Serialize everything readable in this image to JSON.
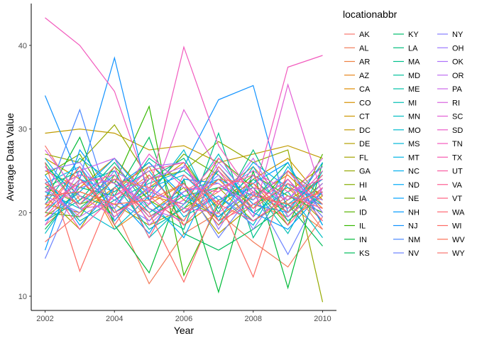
{
  "chart_data": {
    "type": "line",
    "xlabel": "Year",
    "ylabel": "Average Data Value",
    "xlim": [
      2001.6,
      2010.4
    ],
    "ylim": [
      8.3,
      45.0
    ],
    "xticks": [
      "2002",
      "2004",
      "2006",
      "2008",
      "2010"
    ],
    "yticks": [
      "10",
      "20",
      "30",
      "40"
    ],
    "grid": false,
    "legend_title": "locationabbr",
    "legend_placement": "right",
    "x": [
      2002,
      2003,
      2004,
      2005,
      2006,
      2007,
      2008,
      2009,
      2010
    ],
    "series": [
      {
        "name": "AK",
        "color": "#F8766D",
        "values": [
          28.0,
          21.5,
          24.0,
          19.0,
          22.5,
          25.0,
          21.0,
          19.5,
          23.0
        ]
      },
      {
        "name": "AL",
        "color": "#F37B59",
        "values": [
          18.5,
          22.0,
          20.5,
          11.5,
          17.5,
          20.0,
          16.5,
          13.5,
          19.5
        ]
      },
      {
        "name": "AR",
        "color": "#ED8141",
        "values": [
          23.5,
          19.0,
          21.5,
          24.5,
          20.0,
          22.5,
          25.5,
          21.0,
          18.0
        ]
      },
      {
        "name": "AZ",
        "color": "#E7861B",
        "values": [
          20.5,
          25.5,
          18.0,
          21.0,
          23.5,
          19.0,
          22.0,
          24.5,
          20.5
        ]
      },
      {
        "name": "CA",
        "color": "#DE8C00",
        "values": [
          25.0,
          23.0,
          26.5,
          22.0,
          21.0,
          24.0,
          20.0,
          22.5,
          25.5
        ]
      },
      {
        "name": "CO",
        "color": "#D58F00",
        "values": [
          21.0,
          20.0,
          23.0,
          25.5,
          18.5,
          21.5,
          23.5,
          19.0,
          22.0
        ]
      },
      {
        "name": "CT",
        "color": "#CC9600",
        "values": [
          26.5,
          24.0,
          19.5,
          23.0,
          26.0,
          20.5,
          24.0,
          26.5,
          21.5
        ]
      },
      {
        "name": "DC",
        "color": "#C09B00",
        "values": [
          29.5,
          30.0,
          29.5,
          27.5,
          28.0,
          26.0,
          27.0,
          28.0,
          26.5
        ]
      },
      {
        "name": "DE",
        "color": "#B39F00",
        "values": [
          22.0,
          18.0,
          24.5,
          20.0,
          23.0,
          17.5,
          21.0,
          23.0,
          19.0
        ]
      },
      {
        "name": "FL",
        "color": "#A5A400",
        "values": [
          19.5,
          22.5,
          21.0,
          18.5,
          20.5,
          23.0,
          19.0,
          21.5,
          24.0
        ]
      },
      {
        "name": "GA",
        "color": "#95A900",
        "values": [
          27.0,
          26.0,
          30.5,
          24.0,
          25.0,
          28.5,
          26.0,
          27.5,
          9.3
        ]
      },
      {
        "name": "HI",
        "color": "#85AD00",
        "values": [
          23.0,
          21.0,
          22.5,
          26.0,
          21.5,
          19.5,
          22.5,
          20.0,
          23.5
        ]
      },
      {
        "name": "IA",
        "color": "#70B000",
        "values": [
          24.5,
          27.0,
          20.0,
          22.5,
          27.0,
          24.5,
          20.5,
          25.0,
          22.0
        ]
      },
      {
        "name": "ID",
        "color": "#58B400",
        "values": [
          20.0,
          19.5,
          25.5,
          21.5,
          19.0,
          26.5,
          23.0,
          18.5,
          27.0
        ]
      },
      {
        "name": "IL",
        "color": "#36B800",
        "values": [
          22.5,
          24.5,
          23.5,
          32.7,
          12.5,
          21.0,
          24.5,
          22.0,
          20.0
        ]
      },
      {
        "name": "IN",
        "color": "#00BA38",
        "values": [
          21.5,
          29.0,
          18.5,
          12.8,
          24.0,
          10.5,
          25.0,
          11.0,
          26.0
        ]
      },
      {
        "name": "KS",
        "color": "#00BC59",
        "values": [
          18.0,
          23.0,
          22.0,
          29.0,
          17.5,
          15.5,
          18.0,
          21.0,
          16.0
        ]
      },
      {
        "name": "KY",
        "color": "#00BE6C",
        "values": [
          26.0,
          20.5,
          24.0,
          19.5,
          22.0,
          23.0,
          21.5,
          26.0,
          18.5
        ]
      },
      {
        "name": "LA",
        "color": "#00BF7D",
        "values": [
          23.0,
          25.0,
          19.0,
          24.0,
          26.5,
          20.0,
          27.5,
          19.5,
          23.5
        ]
      },
      {
        "name": "MA",
        "color": "#00C08B",
        "values": [
          19.0,
          21.5,
          26.0,
          20.5,
          18.0,
          29.5,
          17.0,
          23.5,
          21.0
        ]
      },
      {
        "name": "MD",
        "color": "#00C19A",
        "values": [
          25.5,
          22.0,
          20.5,
          26.5,
          23.5,
          18.5,
          24.0,
          20.5,
          24.5
        ]
      },
      {
        "name": "ME",
        "color": "#00C0A7",
        "values": [
          21.0,
          26.5,
          23.5,
          18.0,
          20.5,
          25.0,
          19.5,
          24.0,
          19.5
        ]
      },
      {
        "name": "MI",
        "color": "#00BFB4",
        "values": [
          24.0,
          19.0,
          21.5,
          23.5,
          25.0,
          21.5,
          23.0,
          17.5,
          25.0
        ]
      },
      {
        "name": "MN",
        "color": "#00BDC2",
        "values": [
          17.5,
          23.5,
          25.0,
          17.0,
          21.0,
          27.0,
          20.0,
          22.5,
          17.0
        ]
      },
      {
        "name": "MO",
        "color": "#00BBCE",
        "values": [
          22.5,
          20.5,
          18.0,
          22.0,
          27.5,
          19.0,
          25.5,
          19.0,
          22.5
        ]
      },
      {
        "name": "MS",
        "color": "#00B8D9",
        "values": [
          20.0,
          24.0,
          22.5,
          25.0,
          19.5,
          22.0,
          18.5,
          25.5,
          20.0
        ]
      },
      {
        "name": "MT",
        "color": "#00B4E4",
        "values": [
          26.5,
          21.0,
          24.5,
          20.0,
          22.5,
          24.0,
          22.0,
          21.0,
          24.0
        ]
      },
      {
        "name": "NC",
        "color": "#00AFEE",
        "values": [
          23.5,
          25.5,
          20.0,
          23.0,
          24.5,
          20.5,
          26.0,
          23.0,
          21.5
        ]
      },
      {
        "name": "ND",
        "color": "#00A9F8",
        "values": [
          19.0,
          22.5,
          26.5,
          21.5,
          17.0,
          25.5,
          21.0,
          20.0,
          26.0
        ]
      },
      {
        "name": "NE",
        "color": "#00A3FF",
        "values": [
          24.5,
          18.5,
          23.0,
          26.0,
          22.0,
          19.5,
          23.5,
          26.0,
          18.5
        ]
      },
      {
        "name": "NH",
        "color": "#009AFF",
        "values": [
          15.5,
          27.5,
          22.0,
          17.5,
          24.0,
          23.5,
          20.0,
          18.0,
          22.5
        ]
      },
      {
        "name": "NJ",
        "color": "#1192FF",
        "values": [
          34.0,
          24.0,
          38.5,
          21.5,
          25.5,
          33.5,
          35.2,
          20.0,
          24.5
        ]
      },
      {
        "name": "NM",
        "color": "#4B89FF",
        "values": [
          21.5,
          32.3,
          19.0,
          24.5,
          20.0,
          22.0,
          19.0,
          22.0,
          21.0
        ]
      },
      {
        "name": "NV",
        "color": "#6B83FF",
        "values": [
          14.5,
          24.0,
          21.5,
          19.0,
          23.5,
          17.0,
          22.5,
          15.0,
          23.0
        ]
      },
      {
        "name": "NY",
        "color": "#857DFF",
        "values": [
          22.0,
          20.0,
          25.0,
          22.5,
          21.0,
          24.5,
          18.0,
          24.0,
          19.5
        ]
      },
      {
        "name": "OH",
        "color": "#9B77FF",
        "values": [
          25.0,
          26.0,
          20.5,
          25.5,
          26.0,
          18.0,
          24.5,
          21.5,
          25.5
        ]
      },
      {
        "name": "OK",
        "color": "#AD71FB",
        "values": [
          20.5,
          23.0,
          24.0,
          20.5,
          19.0,
          26.0,
          21.5,
          25.0,
          20.0
        ]
      },
      {
        "name": "OR",
        "color": "#BE6CF3",
        "values": [
          23.0,
          19.5,
          22.0,
          24.0,
          25.5,
          21.0,
          26.5,
          19.5,
          23.5
        ]
      },
      {
        "name": "PA",
        "color": "#CB66EA",
        "values": [
          18.5,
          25.0,
          26.5,
          18.5,
          22.5,
          23.5,
          20.5,
          23.5,
          21.5
        ]
      },
      {
        "name": "RI",
        "color": "#D962DF",
        "values": [
          27.5,
          22.0,
          19.5,
          23.0,
          20.5,
          20.0,
          23.0,
          21.5,
          26.5
        ]
      },
      {
        "name": "SC",
        "color": "#E35ED5",
        "values": [
          22.5,
          24.5,
          23.5,
          21.0,
          32.3,
          25.0,
          19.5,
          35.3,
          22.0
        ]
      },
      {
        "name": "SD",
        "color": "#EB5BC9",
        "values": [
          25.5,
          20.5,
          21.0,
          27.0,
          23.0,
          22.5,
          25.0,
          22.5,
          24.0
        ]
      },
      {
        "name": "TN",
        "color": "#F25ABD",
        "values": [
          43.3,
          40.0,
          34.5,
          22.5,
          39.8,
          28.0,
          22.0,
          37.4,
          38.8
        ]
      },
      {
        "name": "TX",
        "color": "#F75AAF",
        "values": [
          21.0,
          23.5,
          24.5,
          19.5,
          21.5,
          26.5,
          22.5,
          20.5,
          25.0
        ]
      },
      {
        "name": "UT",
        "color": "#FB5BA1",
        "values": [
          24.0,
          18.0,
          22.0,
          25.0,
          26.0,
          19.0,
          21.0,
          24.0,
          19.0
        ]
      },
      {
        "name": "VA",
        "color": "#FE5E92",
        "values": [
          19.5,
          24.0,
          20.0,
          22.0,
          18.5,
          23.0,
          24.5,
          18.5,
          23.0
        ]
      },
      {
        "name": "VT",
        "color": "#FF6282",
        "values": [
          23.5,
          21.0,
          25.5,
          17.0,
          24.5,
          21.0,
          19.0,
          22.0,
          20.5
        ]
      },
      {
        "name": "WA",
        "color": "#FF6673",
        "values": [
          20.0,
          25.5,
          18.5,
          24.5,
          20.0,
          24.0,
          23.5,
          20.0,
          24.5
        ]
      },
      {
        "name": "WI",
        "color": "#FE6B64",
        "values": [
          26.0,
          13.0,
          23.0,
          20.0,
          11.7,
          21.5,
          12.3,
          25.0,
          21.0
        ]
      },
      {
        "name": "WV",
        "color": "#FB7056",
        "values": [
          22.0,
          22.5,
          21.0,
          21.5,
          23.5,
          18.5,
          22.0,
          21.0,
          22.5
        ]
      },
      {
        "name": "WY",
        "color": "#F8766D",
        "values": [
          16.5,
          20.0,
          24.0,
          23.0,
          19.0,
          25.5,
          20.5,
          23.5,
          18.0
        ]
      }
    ]
  }
}
